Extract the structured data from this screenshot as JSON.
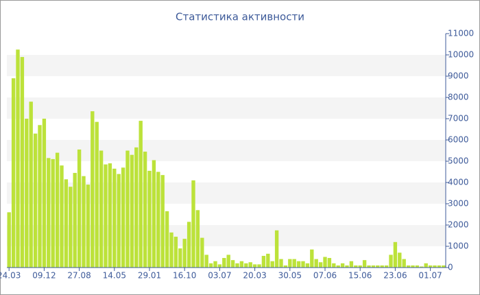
{
  "chart_data": {
    "type": "bar",
    "title": "Статистика активности",
    "categories": [
      "24.03",
      null,
      null,
      null,
      null,
      null,
      null,
      null,
      "09.12",
      null,
      null,
      null,
      null,
      null,
      null,
      null,
      "27.08",
      null,
      null,
      null,
      null,
      null,
      null,
      null,
      "14.05",
      null,
      null,
      null,
      null,
      null,
      null,
      null,
      "29.01",
      null,
      null,
      null,
      null,
      null,
      null,
      null,
      "16.10",
      null,
      null,
      null,
      null,
      null,
      null,
      null,
      "03.07",
      null,
      null,
      null,
      null,
      null,
      null,
      null,
      "20.03",
      null,
      null,
      null,
      null,
      null,
      null,
      null,
      "30.05",
      null,
      null,
      null,
      null,
      null,
      null,
      null,
      "07.06",
      null,
      null,
      null,
      null,
      null,
      null,
      null,
      "15.06",
      null,
      null,
      null,
      null,
      null,
      null,
      null,
      "23.06",
      null,
      null,
      null,
      null,
      null,
      null,
      null,
      "01.07",
      null,
      null,
      null
    ],
    "values": [
      2600,
      8900,
      10250,
      9900,
      7000,
      7800,
      6300,
      6700,
      7000,
      5150,
      5100,
      5400,
      4800,
      4150,
      3800,
      4450,
      5550,
      4300,
      3900,
      7350,
      6850,
      5500,
      4850,
      4900,
      4650,
      4400,
      4700,
      5500,
      5300,
      5650,
      6900,
      5450,
      4550,
      5050,
      4500,
      4350,
      2650,
      1650,
      1450,
      900,
      1350,
      2150,
      4100,
      2700,
      1400,
      600,
      200,
      300,
      150,
      450,
      600,
      350,
      200,
      300,
      200,
      250,
      150,
      150,
      550,
      650,
      300,
      1750,
      400,
      100,
      400,
      400,
      300,
      300,
      200,
      850,
      400,
      250,
      500,
      450,
      200,
      100,
      200,
      100,
      300,
      100,
      100,
      350,
      100,
      100,
      100,
      100,
      100,
      600,
      1200,
      700,
      400,
      100,
      100,
      100,
      50,
      200,
      100,
      100,
      100,
      100
    ],
    "color": "#bce23a",
    "ylim": [
      0,
      11000
    ],
    "yticks": [
      0,
      1000,
      2000,
      3000,
      4000,
      5000,
      6000,
      7000,
      8000,
      9000,
      10000,
      11000
    ]
  }
}
